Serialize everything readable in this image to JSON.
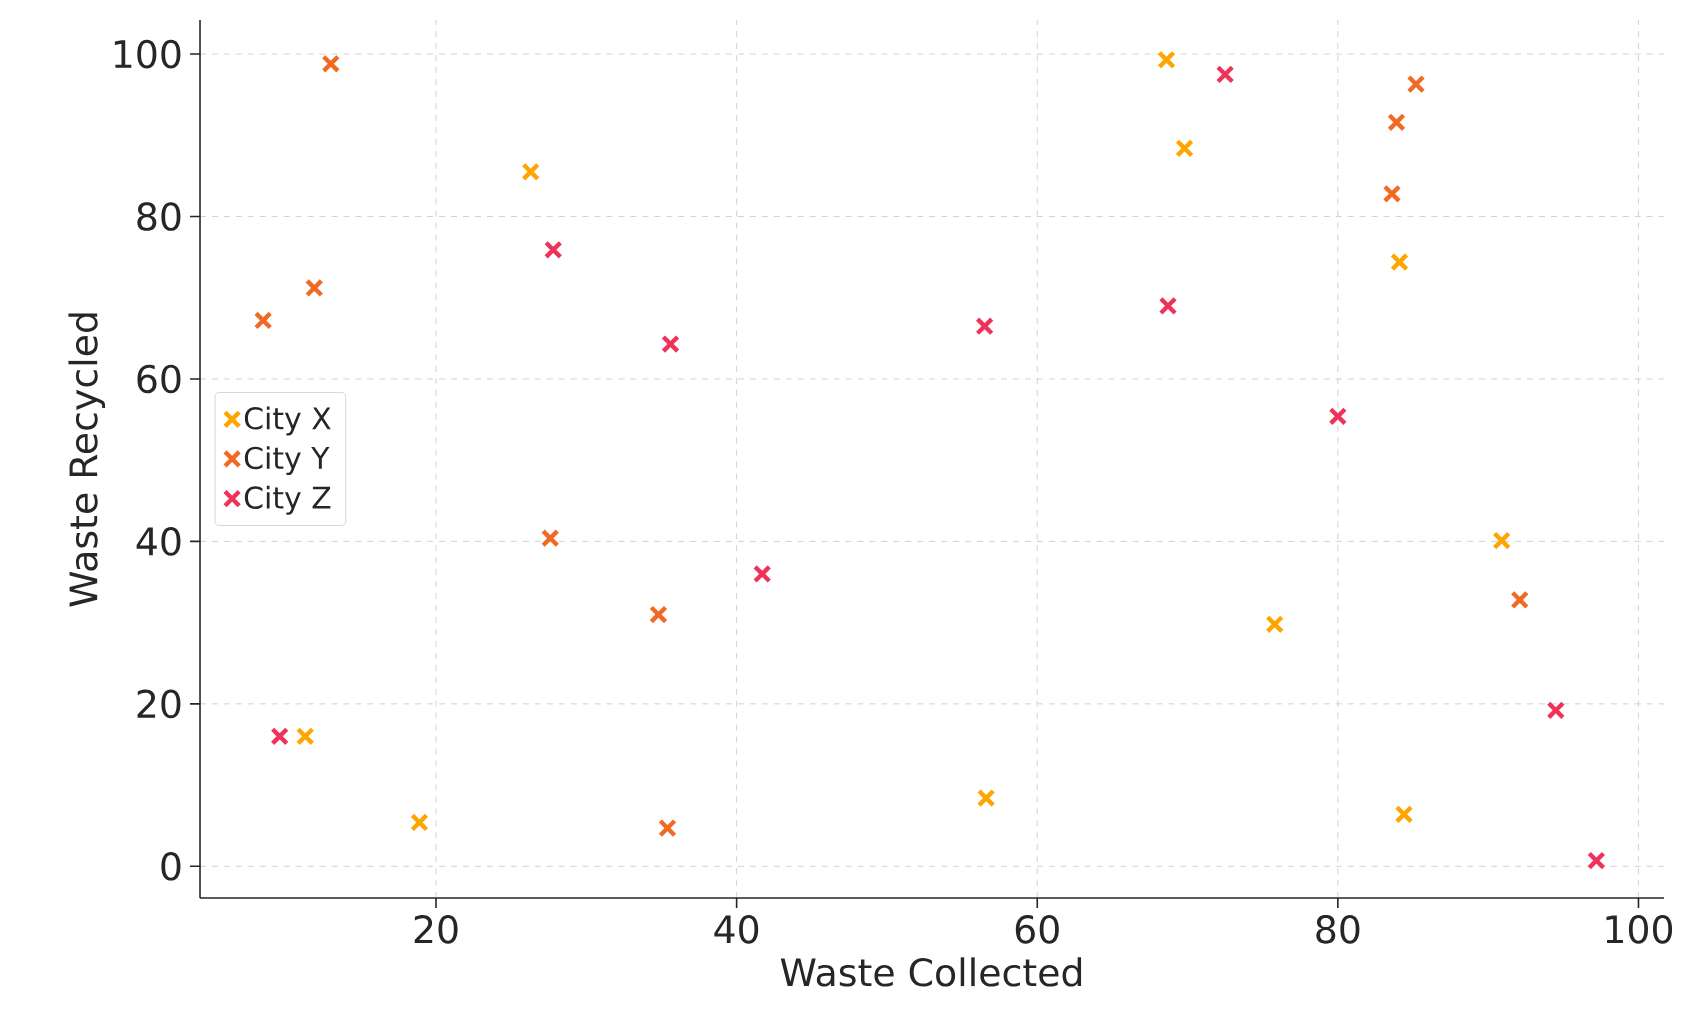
{
  "chart_data": {
    "type": "scatter",
    "xlabel": "Waste Collected",
    "ylabel": "Waste Recycled",
    "xlim": [
      4.3,
      101.7
    ],
    "ylim": [
      -3.9,
      104.2
    ],
    "xticks": [
      20,
      40,
      60,
      80,
      100
    ],
    "yticks": [
      0,
      20,
      40,
      60,
      80,
      100
    ],
    "grid": true,
    "legend": "left",
    "marker": "cross",
    "series": [
      {
        "name": "City X",
        "color": "#ffa500",
        "x": [
          68.6,
          69.8,
          26.3,
          84.1,
          90.9,
          75.8,
          11.3,
          18.9,
          56.6,
          84.4
        ],
        "values": [
          99.3,
          88.4,
          85.5,
          74.4,
          40.1,
          29.8,
          16.0,
          5.4,
          8.4,
          6.4
        ]
      },
      {
        "name": "City Y",
        "color": "#f06a24",
        "x": [
          13.0,
          85.2,
          83.9,
          83.6,
          8.5,
          11.9,
          27.6,
          34.8,
          92.1,
          35.4
        ],
        "values": [
          98.8,
          96.3,
          91.6,
          82.8,
          67.2,
          71.2,
          40.4,
          31.0,
          32.8,
          4.7
        ]
      },
      {
        "name": "City Z",
        "color": "#f0325a",
        "x": [
          72.5,
          27.8,
          35.6,
          56.5,
          68.7,
          80.0,
          41.7,
          9.6,
          94.5,
          97.2
        ],
        "values": [
          97.5,
          75.9,
          64.3,
          66.5,
          69.0,
          55.4,
          36.0,
          16.0,
          19.2,
          0.7
        ]
      }
    ]
  }
}
